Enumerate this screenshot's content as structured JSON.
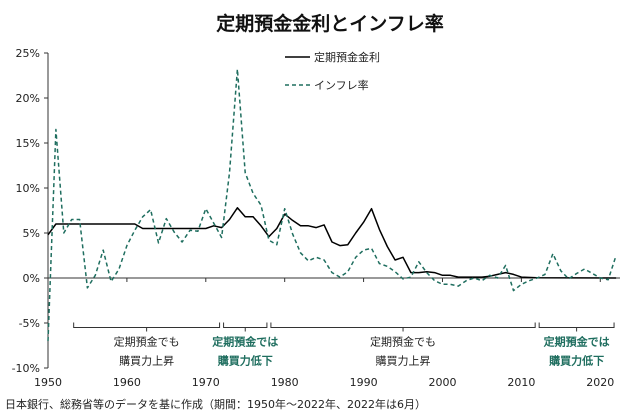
{
  "chart_data": {
    "type": "line",
    "title": "定期預金金利とインフレ率",
    "xlim": [
      1950,
      2022.5
    ],
    "ylim": [
      -10,
      25
    ],
    "x_ticks": [
      "1950",
      "1960",
      "1970",
      "1980",
      "1990",
      "2000",
      "2010",
      "2020"
    ],
    "y_ticks": [
      "-10%",
      "-5%",
      "0%",
      "5%",
      "10%",
      "15%",
      "20%",
      "25%"
    ],
    "grid": false,
    "legend_position": "top-right",
    "colors": {
      "deposit": "#000000",
      "inflation": "#1f6e5f",
      "accent_text": "#1f6e5f"
    },
    "series": [
      {
        "name": "定期預金金利",
        "style": "solid",
        "points": [
          [
            1950,
            4.8
          ],
          [
            1951,
            6.0
          ],
          [
            1952,
            6.0
          ],
          [
            1953,
            6.0
          ],
          [
            1955,
            6.0
          ],
          [
            1960,
            6.0
          ],
          [
            1961,
            6.0
          ],
          [
            1962,
            5.5
          ],
          [
            1970,
            5.5
          ],
          [
            1971,
            5.8
          ],
          [
            1972,
            5.6
          ],
          [
            1973,
            6.5
          ],
          [
            1974,
            7.8
          ],
          [
            1975,
            6.8
          ],
          [
            1976,
            6.8
          ],
          [
            1977,
            5.8
          ],
          [
            1978,
            4.6
          ],
          [
            1979,
            5.5
          ],
          [
            1980,
            7.1
          ],
          [
            1981,
            6.4
          ],
          [
            1982,
            5.8
          ],
          [
            1983,
            5.8
          ],
          [
            1984,
            5.6
          ],
          [
            1985,
            5.9
          ],
          [
            1986,
            4.0
          ],
          [
            1987,
            3.6
          ],
          [
            1988,
            3.7
          ],
          [
            1989,
            5.0
          ],
          [
            1990,
            6.2
          ],
          [
            1991,
            7.7
          ],
          [
            1992,
            5.4
          ],
          [
            1993,
            3.5
          ],
          [
            1994,
            2.0
          ],
          [
            1995,
            2.3
          ],
          [
            1996,
            0.6
          ],
          [
            1997,
            0.6
          ],
          [
            1998,
            0.7
          ],
          [
            1999,
            0.6
          ],
          [
            2000,
            0.3
          ],
          [
            2001,
            0.3
          ],
          [
            2002,
            0.1
          ],
          [
            2003,
            0.1
          ],
          [
            2005,
            0.1
          ],
          [
            2006,
            0.2
          ],
          [
            2007,
            0.4
          ],
          [
            2008,
            0.6
          ],
          [
            2009,
            0.4
          ],
          [
            2010,
            0.1
          ],
          [
            2012,
            0.03
          ],
          [
            2022,
            0.002
          ]
        ]
      },
      {
        "name": "インフレ率",
        "style": "dashed",
        "points": [
          [
            1950,
            -7.0
          ],
          [
            1951,
            16.5
          ],
          [
            1952,
            5.0
          ],
          [
            1953,
            6.5
          ],
          [
            1954,
            6.5
          ],
          [
            1955,
            -1.1
          ],
          [
            1956,
            0.3
          ],
          [
            1957,
            3.1
          ],
          [
            1958,
            -0.4
          ],
          [
            1959,
            1.0
          ],
          [
            1960,
            3.6
          ],
          [
            1961,
            5.3
          ],
          [
            1962,
            6.8
          ],
          [
            1963,
            7.6
          ],
          [
            1964,
            3.9
          ],
          [
            1965,
            6.6
          ],
          [
            1966,
            5.1
          ],
          [
            1967,
            4.0
          ],
          [
            1968,
            5.3
          ],
          [
            1969,
            5.2
          ],
          [
            1970,
            7.7
          ],
          [
            1971,
            6.1
          ],
          [
            1972,
            4.5
          ],
          [
            1973,
            11.7
          ],
          [
            1974,
            23.2
          ],
          [
            1975,
            11.7
          ],
          [
            1976,
            9.4
          ],
          [
            1977,
            8.1
          ],
          [
            1978,
            4.2
          ],
          [
            1979,
            3.7
          ],
          [
            1980,
            7.7
          ],
          [
            1981,
            4.9
          ],
          [
            1982,
            2.8
          ],
          [
            1983,
            1.9
          ],
          [
            1984,
            2.3
          ],
          [
            1985,
            2.0
          ],
          [
            1986,
            0.6
          ],
          [
            1987,
            0.1
          ],
          [
            1988,
            0.7
          ],
          [
            1989,
            2.3
          ],
          [
            1990,
            3.1
          ],
          [
            1991,
            3.3
          ],
          [
            1992,
            1.6
          ],
          [
            1993,
            1.3
          ],
          [
            1994,
            0.7
          ],
          [
            1995,
            -0.1
          ],
          [
            1996,
            0.1
          ],
          [
            1997,
            1.8
          ],
          [
            1998,
            0.6
          ],
          [
            1999,
            -0.3
          ],
          [
            2000,
            -0.7
          ],
          [
            2001,
            -0.7
          ],
          [
            2002,
            -0.9
          ],
          [
            2003,
            -0.3
          ],
          [
            2004,
            0.0
          ],
          [
            2005,
            -0.3
          ],
          [
            2006,
            0.3
          ],
          [
            2007,
            0.0
          ],
          [
            2008,
            1.4
          ],
          [
            2009,
            -1.4
          ],
          [
            2010,
            -0.7
          ],
          [
            2011,
            -0.3
          ],
          [
            2012,
            0.0
          ],
          [
            2013,
            0.4
          ],
          [
            2014,
            2.7
          ],
          [
            2015,
            0.8
          ],
          [
            2016,
            -0.1
          ],
          [
            2017,
            0.5
          ],
          [
            2018,
            1.0
          ],
          [
            2019,
            0.5
          ],
          [
            2020,
            0.0
          ],
          [
            2021,
            -0.2
          ],
          [
            2022,
            2.5
          ]
        ]
      }
    ],
    "periods": [
      {
        "start": 1953,
        "end": 1972,
        "lines": [
          "定期預金でも",
          "購買力上昇"
        ],
        "emphasis": false
      },
      {
        "start": 1972,
        "end": 1978,
        "lines": [
          "定期預金では",
          "購買力低下"
        ],
        "emphasis": true
      },
      {
        "start": 1978,
        "end": 2012,
        "lines": [
          "定期預金でも",
          "購買力上昇"
        ],
        "emphasis": false
      },
      {
        "start": 2012,
        "end": 2022,
        "lines": [
          "定期預金では",
          "購買力低下"
        ],
        "emphasis": true
      }
    ],
    "period_bracket_y": -5.5,
    "note": "日本銀行、総務省等のデータを基に作成（期間：1950年～2022年、2022年は6月）"
  }
}
